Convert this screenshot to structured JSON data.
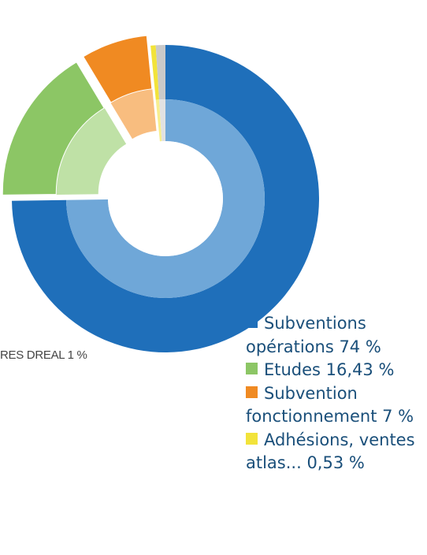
{
  "chart_data": {
    "type": "pie",
    "style": "donut, two rings, exploded wedges",
    "slices": [
      {
        "label": "Subventions opérations",
        "value": 74,
        "display": "Subventions opérations 74 %",
        "color": "#1f6fba",
        "inner_color": "#6fa7d8",
        "exploded": false
      },
      {
        "label": "Etudes",
        "value": 16.43,
        "display": "Etudes 16,43 %",
        "color": "#8cc665",
        "inner_color": "#bfe1a6",
        "exploded": true
      },
      {
        "label": "Subvention fonctionnement",
        "value": 7,
        "display": "Subvention fonctionnement 7 %",
        "color": "#f08a22",
        "inner_color": "#f8bd7f",
        "exploded": true
      },
      {
        "label": "Adhésions, ventes atlas...",
        "value": 0.53,
        "display": "Adhésions, ventes atlas... 0,53 %",
        "color": "#f2e33a",
        "inner_color": "#f7ee8e",
        "exploded": false
      },
      {
        "label": "RES DREAL",
        "value": 1,
        "display": "RES DREAL 1 %",
        "color": "#c9c9c9",
        "inner_color": "#e2e2e2",
        "exploded": false
      }
    ],
    "side_label": "RES DREAL 1 %",
    "legend": [
      {
        "text": "Subventions opérations 74 %",
        "color": "#1f6fba"
      },
      {
        "text": "Etudes 16,43 %",
        "color": "#8cc665"
      },
      {
        "text": "Subvention fonctionnement 7 %",
        "color": "#f08a22"
      },
      {
        "text": "Adhésions, ventes atlas... 0,53 %",
        "color": "#f2e33a"
      }
    ],
    "legend_position": "bottom-right"
  }
}
